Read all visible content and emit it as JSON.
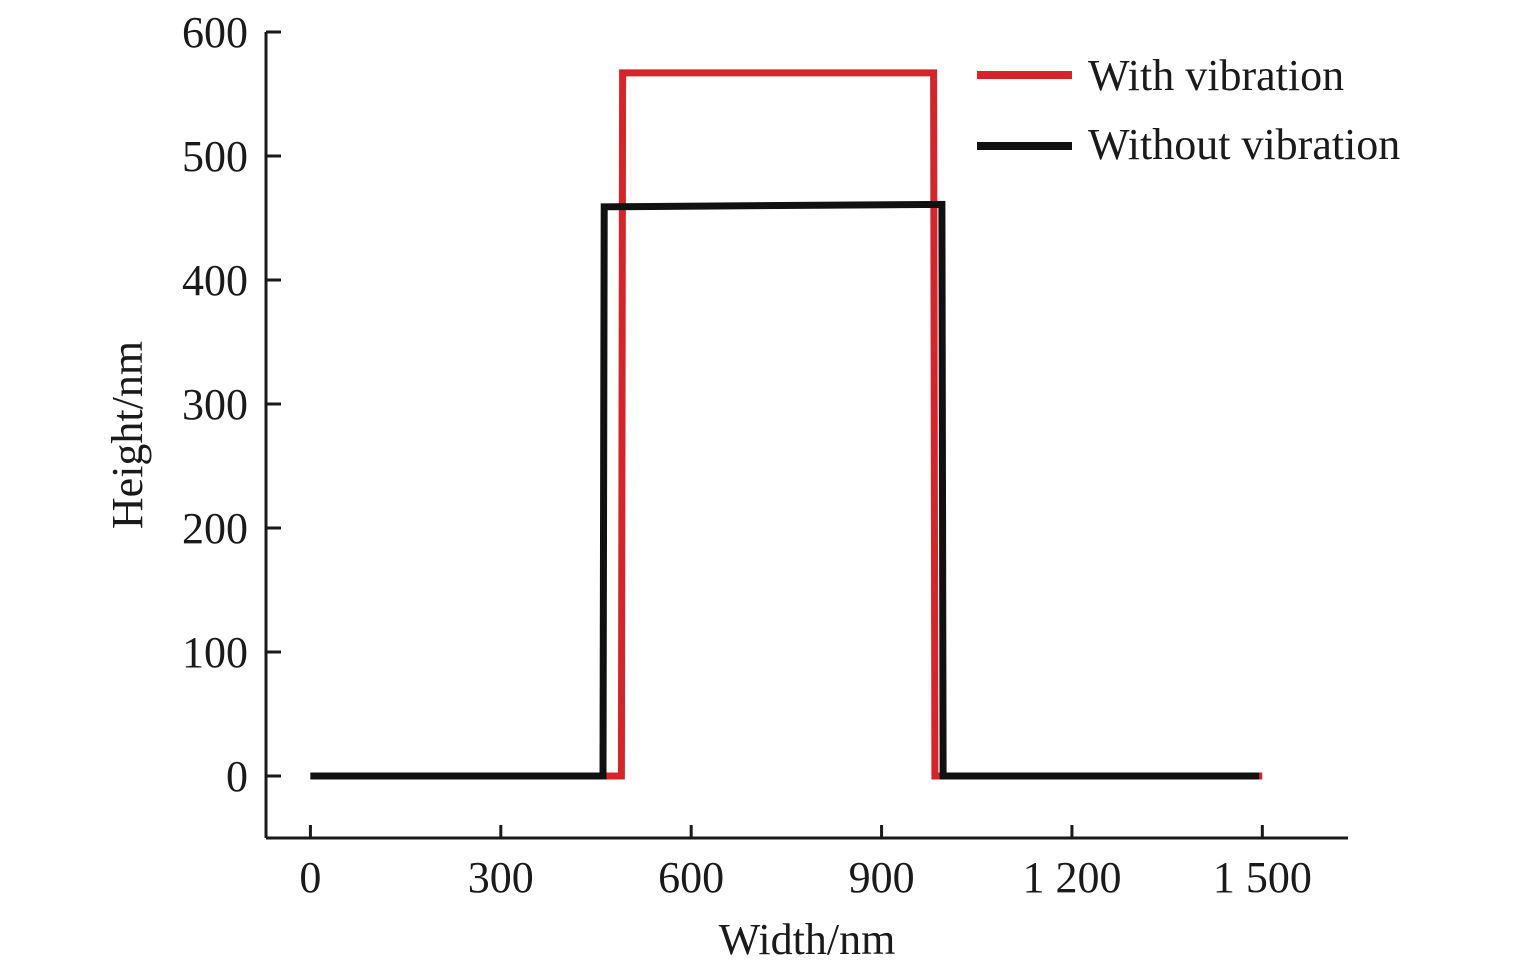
{
  "chart_data": {
    "type": "line",
    "xlabel": "Width/nm",
    "ylabel": "Height/nm",
    "xlim": [
      -70,
      1635
    ],
    "ylim": [
      -50,
      600
    ],
    "x_ticks": [
      0,
      300,
      600,
      900,
      1200,
      1500
    ],
    "x_tick_labels": [
      "0",
      "300",
      "600",
      "900",
      "1 200",
      "1 500"
    ],
    "y_ticks": [
      0,
      100,
      200,
      300,
      400,
      500,
      600
    ],
    "y_tick_labels": [
      "0",
      "100",
      "200",
      "300",
      "400",
      "500",
      "600"
    ],
    "grid": false,
    "legend_position": "top-right",
    "series": [
      {
        "name": "With vibration",
        "color": "#d2262b",
        "x": [
          0,
          490,
          492,
          982,
          984,
          1500
        ],
        "y": [
          0,
          0,
          567,
          567,
          0,
          0
        ]
      },
      {
        "name": "Without vibration",
        "color": "#111111",
        "x": [
          0,
          461,
          463,
          995,
          997,
          1495
        ],
        "y": [
          0,
          0,
          459,
          461,
          0,
          0
        ]
      }
    ]
  }
}
